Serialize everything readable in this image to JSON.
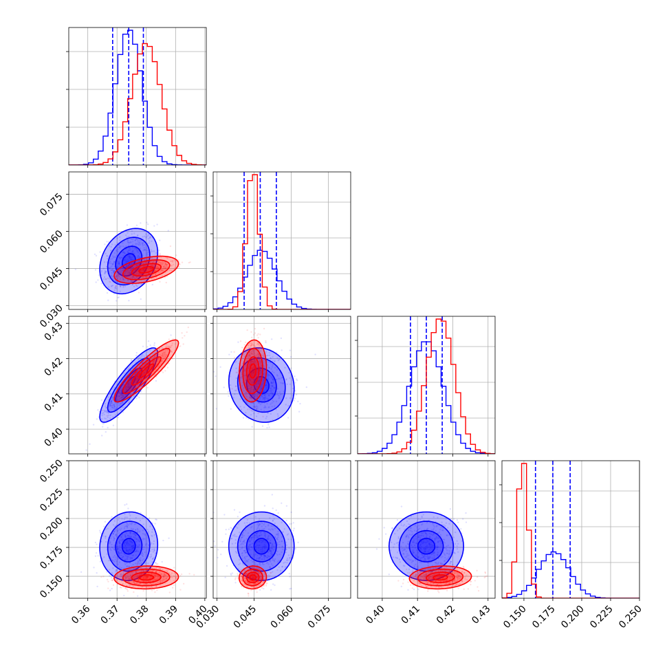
{
  "chart_data": {
    "type": "corner",
    "grid": true,
    "parameters": [
      {
        "ticks": [
          "0.36",
          "0.37",
          "0.38",
          "0.39",
          "0.40"
        ],
        "tick_values": [
          0.36,
          0.37,
          0.38,
          0.39,
          0.4
        ],
        "range": [
          0.3535,
          0.4005
        ]
      },
      {
        "ticks": [
          "0.030",
          "0.045",
          "0.060",
          "0.075"
        ],
        "tick_values": [
          0.03,
          0.045,
          0.06,
          0.075
        ],
        "range": [
          0.0285,
          0.084
        ]
      },
      {
        "ticks": [
          "0.40",
          "0.41",
          "0.42",
          "0.43"
        ],
        "tick_values": [
          0.4,
          0.41,
          0.42,
          0.43
        ],
        "range": [
          0.393,
          0.432
        ]
      },
      {
        "ticks": [
          "0.150",
          "0.175",
          "0.200",
          "0.225",
          "0.250"
        ],
        "tick_values": [
          0.15,
          0.175,
          0.2,
          0.225,
          0.25
        ],
        "range": [
          0.131,
          0.25
        ]
      }
    ],
    "series": [
      {
        "color": "#0000ff",
        "mean": [
          0.374,
          0.048,
          0.4125,
          0.176
        ],
        "std": [
          0.0045,
          0.006,
          0.0048,
          0.0135
        ],
        "quantiles": [
          [
            0.3685,
            0.374,
            0.379
          ],
          [
            0.041,
            0.0475,
            0.054
          ],
          [
            0.408,
            0.4125,
            0.417
          ],
          [
            0.16,
            0.175,
            0.19
          ]
        ],
        "correlations": [
          [
            0,
            1,
            0.25
          ],
          [
            0,
            2,
            0.85
          ],
          [
            1,
            2,
            -0.1
          ],
          [
            0,
            3,
            0.05
          ],
          [
            1,
            3,
            0.0
          ],
          [
            2,
            3,
            0.0
          ]
        ]
      },
      {
        "color": "#ff0000",
        "mean": [
          0.38,
          0.0445,
          0.4165,
          0.149
        ],
        "std": [
          0.005,
          0.0025,
          0.004,
          0.0045
        ],
        "quantiles": [],
        "correlations": [
          [
            0,
            1,
            0.45
          ],
          [
            0,
            2,
            0.9
          ],
          [
            1,
            2,
            0.1
          ],
          [
            0,
            3,
            0.05
          ],
          [
            1,
            3,
            0.05
          ],
          [
            2,
            3,
            0.1
          ]
        ]
      }
    ]
  }
}
